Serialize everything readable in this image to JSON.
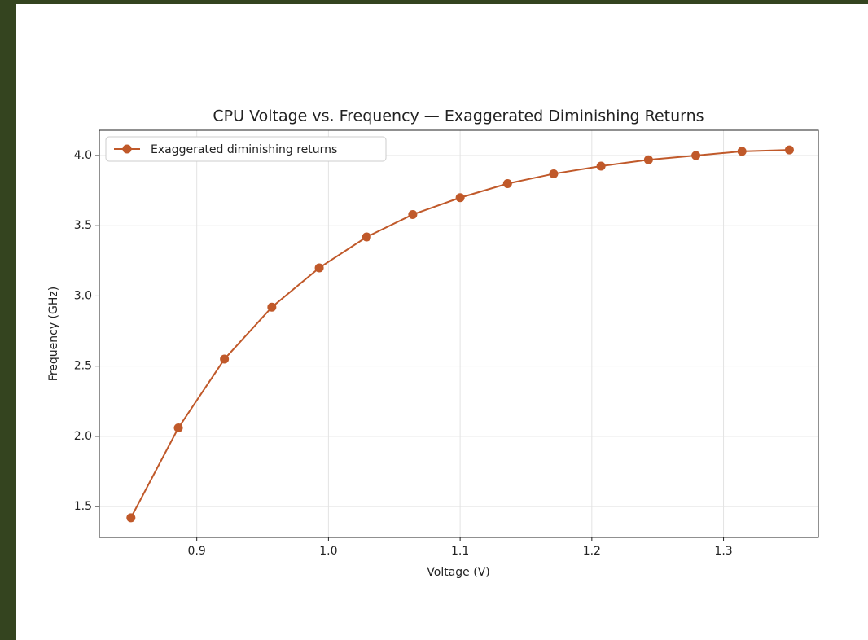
{
  "chart_data": {
    "type": "line",
    "title": "CPU Voltage vs. Frequency — Exaggerated Diminishing Returns",
    "xlabel": "Voltage (V)",
    "ylabel": "Frequency (GHz)",
    "x": [
      0.85,
      0.886,
      0.921,
      0.957,
      0.993,
      1.029,
      1.064,
      1.1,
      1.136,
      1.171,
      1.207,
      1.243,
      1.279,
      1.314,
      1.35
    ],
    "series": [
      {
        "name": "Exaggerated diminishing returns",
        "color": "#c0592a",
        "values": [
          1.42,
          2.06,
          2.55,
          2.92,
          3.2,
          3.42,
          3.58,
          3.7,
          3.8,
          3.87,
          3.925,
          3.97,
          4.0,
          4.03,
          4.04
        ]
      }
    ],
    "xlim": [
      0.826,
      1.372
    ],
    "ylim": [
      1.28,
      4.18
    ],
    "xticks": [
      0.9,
      {
        "value": 1,
        "label": "1.0"
      },
      1.1,
      1.2,
      1.3
    ],
    "yticks": [
      1.5,
      {
        "value": 2,
        "label": "2.0"
      },
      2.5,
      {
        "value": 3,
        "label": "3.0"
      },
      3.5,
      {
        "value": 4,
        "label": "4.0"
      }
    ],
    "grid": true,
    "legend": "upper left"
  }
}
